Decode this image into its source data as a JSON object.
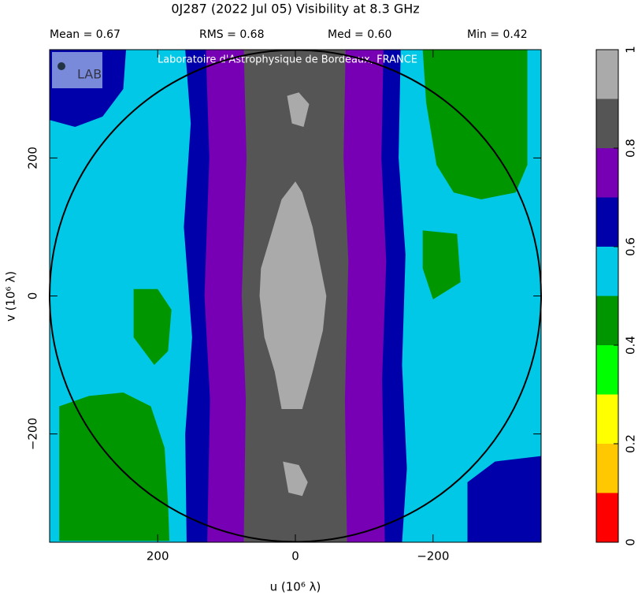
{
  "chart_data": {
    "type": "contour-map",
    "title": "0J287  (2022 Jul 05)   Visibility at  8.3 GHz",
    "stats": [
      "Mean =  0.67",
      "RMS =  0.68",
      "Med =  0.60",
      "Min =  0.42"
    ],
    "watermark": "Laboratoire d'Astrophysique de Bordeaux, FRANCE",
    "x_label": "u  (10⁶ λ)",
    "y_label": "v  (10⁶ λ)",
    "xlim": [
      357,
      -357
    ],
    "ylim": [
      -357,
      357
    ],
    "xticks": [
      200,
      0,
      {
        "value": -200,
        "label": "−200"
      }
    ],
    "yticks": [
      {
        "value": -200,
        "label": "−200"
      },
      0,
      200
    ],
    "colorbar": {
      "lim": [
        0,
        1
      ],
      "ticks": [
        0,
        0.2,
        0.4,
        0.6,
        0.8,
        1
      ],
      "colors": [
        "#ff0000",
        "#ffc800",
        "#ffff00",
        "#00ff00",
        "#009600",
        "#00c8e6",
        "#0000aa",
        "#7800b4",
        "#555555",
        "#aaaaaa"
      ]
    },
    "regions": [
      {
        "level": 0.5,
        "points": [
          [
            357,
            357
          ],
          [
            -357,
            357
          ],
          [
            -357,
            -357
          ],
          [
            357,
            -357
          ]
        ]
      },
      {
        "level": 0.6,
        "points": [
          [
            160,
            357
          ],
          [
            -153,
            357
          ],
          [
            -150,
            200
          ],
          [
            -160,
            60
          ],
          [
            -155,
            -100
          ],
          [
            -162,
            -250
          ],
          [
            -155,
            -357
          ],
          [
            158,
            -357
          ],
          [
            160,
            -200
          ],
          [
            150,
            -60
          ],
          [
            162,
            100
          ],
          [
            152,
            250
          ]
        ]
      },
      {
        "level": 0.7,
        "points": [
          [
            130,
            357
          ],
          [
            -128,
            357
          ],
          [
            -125,
            200
          ],
          [
            -132,
            50
          ],
          [
            -126,
            -120
          ],
          [
            -130,
            -357
          ],
          [
            128,
            -357
          ],
          [
            124,
            -150
          ],
          [
            132,
            0
          ],
          [
            125,
            200
          ]
        ]
      },
      {
        "level": 0.8,
        "points": [
          [
            75,
            357
          ],
          [
            -73,
            357
          ],
          [
            -70,
            200
          ],
          [
            -77,
            50
          ],
          [
            -72,
            -150
          ],
          [
            -75,
            -357
          ],
          [
            75,
            -357
          ],
          [
            72,
            -150
          ],
          [
            78,
            0
          ],
          [
            71,
            200
          ]
        ]
      },
      {
        "level": 0.9,
        "points": [
          [
            0,
            166
          ],
          [
            20,
            140
          ],
          [
            35,
            90
          ],
          [
            50,
            40
          ],
          [
            52,
            0
          ],
          [
            45,
            -60
          ],
          [
            30,
            -110
          ],
          [
            20,
            -164
          ],
          [
            -10,
            -164
          ],
          [
            -25,
            -110
          ],
          [
            -40,
            -50
          ],
          [
            -45,
            0
          ],
          [
            -35,
            50
          ],
          [
            -25,
            100
          ],
          [
            -10,
            150
          ]
        ]
      },
      {
        "level": 0.9,
        "points": [
          [
            12,
            290
          ],
          [
            -5,
            295
          ],
          [
            -20,
            278
          ],
          [
            -12,
            245
          ],
          [
            5,
            250
          ]
        ]
      },
      {
        "level": 0.9,
        "points": [
          [
            18,
            -240
          ],
          [
            -5,
            -245
          ],
          [
            -18,
            -270
          ],
          [
            -10,
            -290
          ],
          [
            10,
            -285
          ]
        ]
      },
      {
        "level": 0.4,
        "points": [
          [
            -185,
            357
          ],
          [
            -337,
            357
          ],
          [
            -337,
            190
          ],
          [
            -320,
            150
          ],
          [
            -270,
            140
          ],
          [
            -230,
            150
          ],
          [
            -205,
            190
          ],
          [
            -190,
            280
          ]
        ]
      },
      {
        "level": 0.4,
        "points": [
          [
            343,
            -160
          ],
          [
            300,
            -145
          ],
          [
            250,
            -140
          ],
          [
            210,
            -160
          ],
          [
            190,
            -220
          ],
          [
            185,
            -300
          ],
          [
            183,
            -355
          ],
          [
            343,
            -355
          ]
        ]
      },
      {
        "level": 0.4,
        "points": [
          [
            235,
            10
          ],
          [
            200,
            10
          ],
          [
            180,
            -20
          ],
          [
            185,
            -80
          ],
          [
            205,
            -100
          ],
          [
            235,
            -60
          ]
        ]
      },
      {
        "level": 0.4,
        "points": [
          [
            -185,
            95
          ],
          [
            -235,
            90
          ],
          [
            -240,
            20
          ],
          [
            -200,
            -5
          ],
          [
            -185,
            40
          ]
        ]
      },
      {
        "level": 0.6,
        "points": [
          [
            357,
            357
          ],
          [
            246,
            357
          ],
          [
            250,
            300
          ],
          [
            280,
            260
          ],
          [
            320,
            245
          ],
          [
            357,
            255
          ]
        ]
      },
      {
        "level": 0.6,
        "points": [
          [
            -250,
            -357
          ],
          [
            -250,
            -270
          ],
          [
            -290,
            -240
          ],
          [
            -357,
            -232
          ],
          [
            -357,
            -357
          ]
        ]
      }
    ]
  }
}
